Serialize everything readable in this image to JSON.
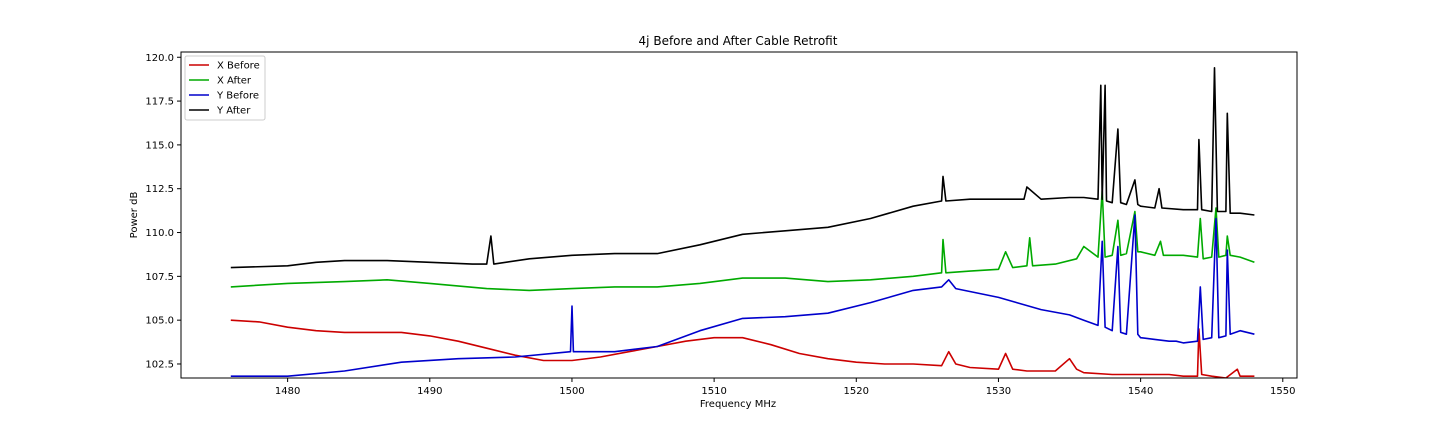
{
  "chart_data": {
    "type": "line",
    "title": "4j Before and After Cable Retrofit",
    "xlabel": "Frequency MHz",
    "ylabel": "Power dB",
    "xlim": [
      1472.5,
      1551.0
    ],
    "ylim": [
      101.7,
      120.3
    ],
    "xticks": [
      1480,
      1490,
      1500,
      1510,
      1520,
      1530,
      1540,
      1550
    ],
    "yticks": [
      102.5,
      105.0,
      107.5,
      110.0,
      112.5,
      115.0,
      117.5,
      120.0
    ],
    "xtick_labels": [
      "1480",
      "1490",
      "1500",
      "1510",
      "1520",
      "1530",
      "1540",
      "1550"
    ],
    "ytick_labels": [
      "102.5",
      "105.0",
      "107.5",
      "110.0",
      "112.5",
      "115.0",
      "117.5",
      "120.0"
    ],
    "grid": false,
    "legend_position": "upper-left",
    "series": [
      {
        "name": "X Before",
        "color": "#cc0000",
        "x": [
          1476,
          1478,
          1480,
          1482,
          1484,
          1486,
          1488,
          1490,
          1492,
          1494,
          1496,
          1498,
          1500,
          1502,
          1504,
          1506,
          1508,
          1510,
          1512,
          1514,
          1516,
          1518,
          1520,
          1522,
          1524,
          1526,
          1526.5,
          1527,
          1528,
          1530,
          1530.5,
          1531,
          1532,
          1534,
          1535,
          1535.5,
          1536,
          1538,
          1540,
          1542,
          1543,
          1544,
          1544.1,
          1544.3,
          1545,
          1546,
          1546.8,
          1547,
          1548
        ],
        "values": [
          105.0,
          104.9,
          104.6,
          104.4,
          104.3,
          104.3,
          104.3,
          104.1,
          103.8,
          103.4,
          103.0,
          102.7,
          102.7,
          102.9,
          103.2,
          103.5,
          103.8,
          104.0,
          104.0,
          103.6,
          103.1,
          102.8,
          102.6,
          102.5,
          102.5,
          102.4,
          103.2,
          102.5,
          102.3,
          102.2,
          103.1,
          102.2,
          102.1,
          102.1,
          102.8,
          102.2,
          102.0,
          101.9,
          101.9,
          101.9,
          101.8,
          101.8,
          104.5,
          101.9,
          101.8,
          101.7,
          102.2,
          101.8,
          101.8
        ]
      },
      {
        "name": "X After",
        "color": "#00aa00",
        "x": [
          1476,
          1480,
          1484,
          1487,
          1490,
          1494,
          1497,
          1500,
          1503,
          1506,
          1509,
          1512,
          1515,
          1518,
          1521,
          1524,
          1526,
          1526.1,
          1526.3,
          1528,
          1530,
          1530.5,
          1531,
          1532,
          1532.2,
          1532.4,
          1534,
          1535.5,
          1536,
          1537,
          1537.3,
          1537.5,
          1538,
          1538.4,
          1538.6,
          1539,
          1539.6,
          1539.8,
          1540,
          1541,
          1541.4,
          1541.6,
          1543,
          1544,
          1544.2,
          1544.4,
          1545,
          1545.3,
          1545.5,
          1546,
          1546.1,
          1546.3,
          1547,
          1548
        ],
        "values": [
          106.9,
          107.1,
          107.2,
          107.3,
          107.1,
          106.8,
          106.7,
          106.8,
          106.9,
          106.9,
          107.1,
          107.4,
          107.4,
          107.2,
          107.3,
          107.5,
          107.7,
          109.6,
          107.7,
          107.8,
          107.9,
          108.9,
          108.0,
          108.1,
          109.7,
          108.1,
          108.2,
          108.5,
          109.2,
          108.6,
          112.4,
          108.6,
          108.7,
          110.7,
          108.7,
          108.8,
          111.2,
          108.9,
          108.9,
          108.7,
          109.5,
          108.7,
          108.7,
          108.6,
          110.8,
          108.5,
          108.6,
          111.4,
          108.6,
          108.7,
          109.8,
          108.7,
          108.6,
          108.3
        ]
      },
      {
        "name": "Y Before",
        "color": "#0000cc",
        "x": [
          1476,
          1480,
          1484,
          1488,
          1492,
          1496,
          1499.9,
          1500,
          1500.1,
          1503,
          1506,
          1509,
          1512,
          1515,
          1518,
          1521,
          1524,
          1526,
          1526.5,
          1527,
          1530,
          1533,
          1535,
          1536,
          1537,
          1537.3,
          1537.5,
          1538,
          1538.4,
          1538.6,
          1539,
          1539.6,
          1539.8,
          1540,
          1541,
          1542,
          1542.5,
          1543,
          1544,
          1544.2,
          1544.4,
          1545,
          1545.3,
          1545.5,
          1546,
          1546.1,
          1546.3,
          1547,
          1548
        ],
        "values": [
          101.8,
          101.8,
          102.1,
          102.6,
          102.8,
          102.9,
          103.2,
          105.8,
          103.2,
          103.2,
          103.5,
          104.4,
          105.1,
          105.2,
          105.4,
          106.0,
          106.7,
          106.9,
          107.3,
          106.8,
          106.3,
          105.6,
          105.3,
          105.0,
          104.7,
          109.5,
          104.6,
          104.4,
          109.2,
          104.3,
          104.2,
          111.0,
          104.2,
          104.0,
          103.9,
          103.8,
          103.8,
          103.7,
          103.8,
          106.9,
          103.9,
          104.0,
          110.8,
          104.0,
          104.1,
          109.0,
          104.2,
          104.4,
          104.2
        ]
      },
      {
        "name": "Y After",
        "color": "#000000",
        "x": [
          1476,
          1480,
          1482,
          1484,
          1487,
          1490,
          1493,
          1494,
          1494.3,
          1494.5,
          1497,
          1500,
          1503,
          1506,
          1509,
          1512,
          1515,
          1518,
          1521,
          1524,
          1526,
          1526.1,
          1526.3,
          1528,
          1530,
          1531.8,
          1532,
          1533,
          1535,
          1536,
          1537,
          1537.2,
          1537.3,
          1537.5,
          1537.6,
          1538,
          1538.4,
          1538.6,
          1539,
          1539.6,
          1539.8,
          1540,
          1541,
          1541.3,
          1541.5,
          1543,
          1544,
          1544.1,
          1544.3,
          1545,
          1545.2,
          1545.4,
          1546,
          1546.1,
          1546.3,
          1547,
          1548
        ],
        "values": [
          108.0,
          108.1,
          108.3,
          108.4,
          108.4,
          108.3,
          108.2,
          108.2,
          109.8,
          108.2,
          108.5,
          108.7,
          108.8,
          108.8,
          109.3,
          109.9,
          110.1,
          110.3,
          110.8,
          111.5,
          111.8,
          113.2,
          111.8,
          111.9,
          111.9,
          111.9,
          112.6,
          111.9,
          112.0,
          112.0,
          111.9,
          118.4,
          111.9,
          118.4,
          111.8,
          111.7,
          115.9,
          111.7,
          111.6,
          113.0,
          111.6,
          111.5,
          111.4,
          112.5,
          111.4,
          111.3,
          111.3,
          115.3,
          111.3,
          111.2,
          119.4,
          111.2,
          111.2,
          116.8,
          111.1,
          111.1,
          111.0
        ]
      }
    ]
  }
}
